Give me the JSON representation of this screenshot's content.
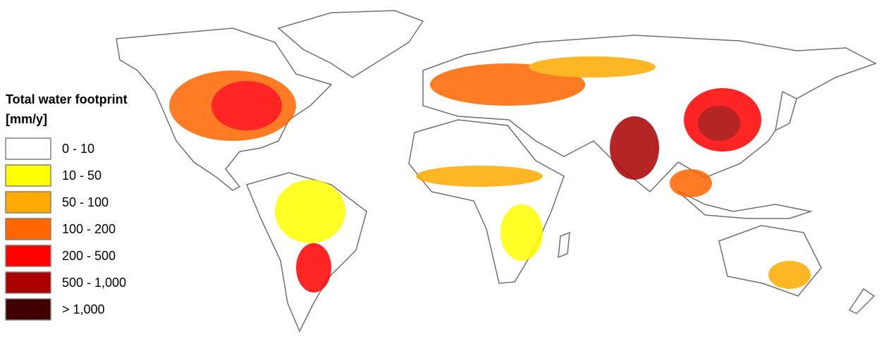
{
  "legend": {
    "title": "Total water footprint",
    "unit": "[mm/y]",
    "classes": [
      {
        "label": "0 - 10",
        "color": "#ffffff"
      },
      {
        "label": "10 - 50",
        "color": "#ffff00"
      },
      {
        "label": "50 - 100",
        "color": "#ffaa00"
      },
      {
        "label": "100 - 200",
        "color": "#ff6600"
      },
      {
        "label": "200 - 500",
        "color": "#ff0000"
      },
      {
        "label": "500 - 1,000",
        "color": "#aa0000"
      },
      {
        "label": "> 1,000",
        "color": "#400000"
      }
    ]
  }
}
